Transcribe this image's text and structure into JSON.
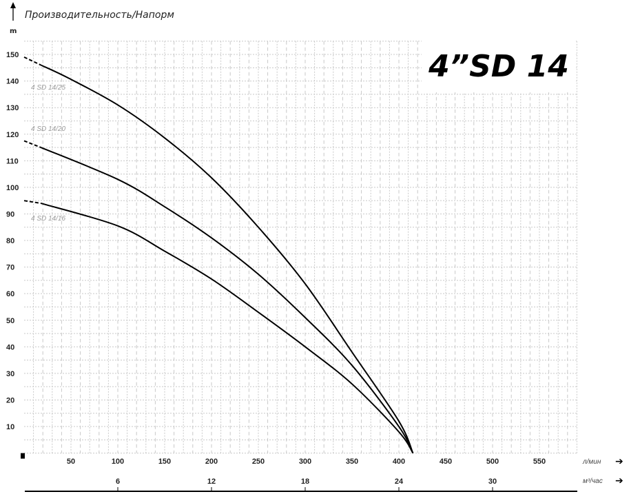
{
  "chart_data": {
    "type": "line",
    "title": "Производительность/Напорм",
    "model_label": "4”SD 14",
    "ylabel": "m",
    "xlabel": "л/мин",
    "x2label": "м³/час",
    "xlim": [
      0,
      590
    ],
    "ylim": [
      0,
      155
    ],
    "grid": true,
    "y_ticks": [
      10,
      20,
      30,
      40,
      50,
      60,
      70,
      80,
      90,
      100,
      110,
      120,
      130,
      140,
      150
    ],
    "x_ticks": [
      50,
      100,
      150,
      200,
      250,
      300,
      350,
      400,
      450,
      500,
      550
    ],
    "x2_ticks": [
      6,
      12,
      18,
      24,
      30
    ],
    "series": [
      {
        "name": "4 SD 14/25",
        "dashed_until": 18,
        "x": [
          0,
          18,
          48,
          100,
          150,
          200,
          250,
          300,
          350,
          400,
          415
        ],
        "y": [
          149,
          146,
          141,
          131,
          118.6,
          103.6,
          85,
          63.7,
          38,
          12,
          0
        ]
      },
      {
        "name": "4 SD 14/20",
        "dashed_until": 18,
        "x": [
          0,
          18,
          100,
          150,
          200,
          250,
          300,
          350,
          400,
          415
        ],
        "y": [
          117.5,
          115,
          103,
          92.7,
          81,
          67.3,
          51,
          33,
          10,
          0
        ]
      },
      {
        "name": "4 SD 14/16",
        "dashed_until": 18,
        "x": [
          0,
          18,
          100,
          150,
          200,
          250,
          300,
          350,
          400,
          415
        ],
        "y": [
          95,
          94,
          85.5,
          76,
          65.5,
          53,
          40,
          26,
          8,
          0
        ]
      }
    ],
    "colors": {
      "curve": "#000000",
      "grid": "#c8c8c8",
      "series_label": "#9a9a9a"
    }
  }
}
